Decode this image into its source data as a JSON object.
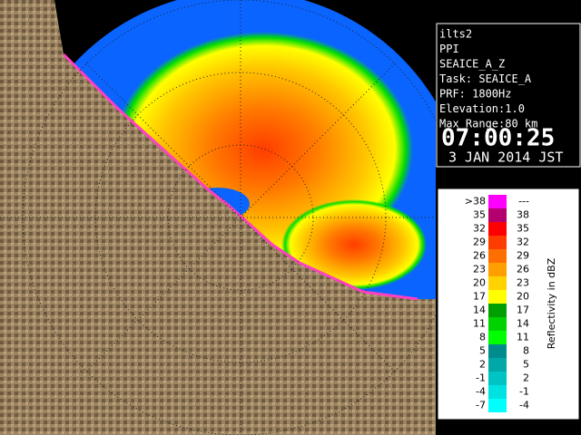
{
  "info": {
    "lines": [
      "ilts2",
      "PPI",
      "SEAICE_A_Z",
      "Task: SEAICE_A",
      "PRF: 1800Hz",
      "Elevation:1.0",
      "Max Range:80 km"
    ],
    "time": "07:00:25",
    "date": "3 JAN 2014 JST"
  },
  "legend": {
    "title": "Reflectivity in dBZ",
    "rows": [
      {
        "from": ">38",
        "to": "---",
        "color": "#ff00ff"
      },
      {
        "from": "35",
        "to": "38",
        "color": "#b4006e"
      },
      {
        "from": "32",
        "to": "35",
        "color": "#ff0000"
      },
      {
        "from": "29",
        "to": "32",
        "color": "#ff3c00"
      },
      {
        "from": "26",
        "to": "29",
        "color": "#ff6e00"
      },
      {
        "from": "23",
        "to": "26",
        "color": "#ffa000"
      },
      {
        "from": "20",
        "to": "23",
        "color": "#ffd200"
      },
      {
        "from": "17",
        "to": "20",
        "color": "#ffff00"
      },
      {
        "from": "14",
        "to": "17",
        "color": "#00a000"
      },
      {
        "from": "11",
        "to": "14",
        "color": "#00d200"
      },
      {
        "from": "8",
        "to": "11",
        "color": "#00ff00"
      },
      {
        "from": "5",
        "to": "8",
        "color": "#008c8c"
      },
      {
        "from": "2",
        "to": "5",
        "color": "#00a8a8"
      },
      {
        "from": "-1",
        "to": "2",
        "color": "#00c4c4"
      },
      {
        "from": "-4",
        "to": "-1",
        "color": "#00e2e2"
      },
      {
        "from": "-7",
        "to": "-4",
        "color": "#00ffff"
      }
    ]
  }
}
